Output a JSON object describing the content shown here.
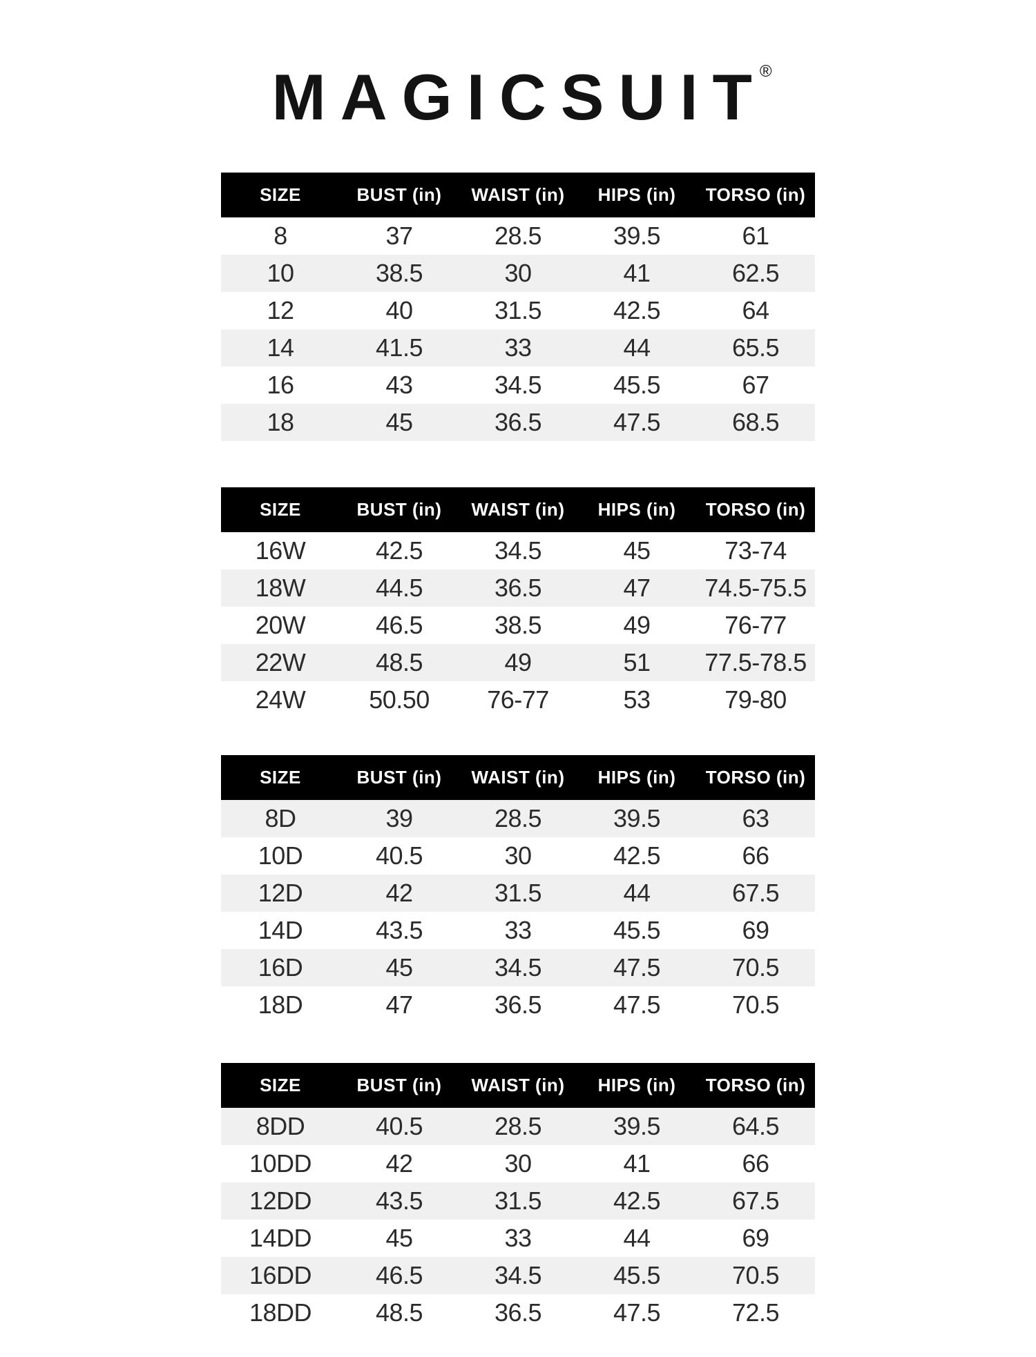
{
  "logo": {
    "text": "MAGICSUIT",
    "trademark": "®"
  },
  "colors": {
    "page_bg": "#ffffff",
    "header_bg": "#000000",
    "header_text": "#ffffff",
    "row_stripe": "#f0f0f0",
    "body_text": "#2b2b2b"
  },
  "tables": [
    {
      "shaded_rows": "even",
      "columns": [
        "SIZE",
        "BUST (in)",
        "WAIST (in)",
        "HIPS (in)",
        "TORSO (in)"
      ],
      "rows": [
        [
          "8",
          "37",
          "28.5",
          "39.5",
          "61"
        ],
        [
          "10",
          "38.5",
          "30",
          "41",
          "62.5"
        ],
        [
          "12",
          "40",
          "31.5",
          "42.5",
          "64"
        ],
        [
          "14",
          "41.5",
          "33",
          "44",
          "65.5"
        ],
        [
          "16",
          "43",
          "34.5",
          "45.5",
          "67"
        ],
        [
          "18",
          "45",
          "36.5",
          "47.5",
          "68.5"
        ]
      ]
    },
    {
      "shaded_rows": "even",
      "columns": [
        "SIZE",
        "BUST (in)",
        "WAIST (in)",
        "HIPS (in)",
        "TORSO (in)"
      ],
      "rows": [
        [
          "16W",
          "42.5",
          "34.5",
          "45",
          "73-74"
        ],
        [
          "18W",
          "44.5",
          "36.5",
          "47",
          "74.5-75.5"
        ],
        [
          "20W",
          "46.5",
          "38.5",
          "49",
          "76-77"
        ],
        [
          "22W",
          "48.5",
          "49",
          "51",
          "77.5-78.5"
        ],
        [
          "24W",
          "50.50",
          "76-77",
          "53",
          "79-80"
        ]
      ]
    },
    {
      "shaded_rows": "odd",
      "columns": [
        "SIZE",
        "BUST (in)",
        "WAIST (in)",
        "HIPS (in)",
        "TORSO (in)"
      ],
      "rows": [
        [
          "8D",
          "39",
          "28.5",
          "39.5",
          "63"
        ],
        [
          "10D",
          "40.5",
          "30",
          "42.5",
          "66"
        ],
        [
          "12D",
          "42",
          "31.5",
          "44",
          "67.5"
        ],
        [
          "14D",
          "43.5",
          "33",
          "45.5",
          "69"
        ],
        [
          "16D",
          "45",
          "34.5",
          "47.5",
          "70.5"
        ],
        [
          "18D",
          "47",
          "36.5",
          "47.5",
          "70.5"
        ]
      ]
    },
    {
      "shaded_rows": "odd",
      "columns": [
        "SIZE",
        "BUST (in)",
        "WAIST (in)",
        "HIPS (in)",
        "TORSO (in)"
      ],
      "rows": [
        [
          "8DD",
          "40.5",
          "28.5",
          "39.5",
          "64.5"
        ],
        [
          "10DD",
          "42",
          "30",
          "41",
          "66"
        ],
        [
          "12DD",
          "43.5",
          "31.5",
          "42.5",
          "67.5"
        ],
        [
          "14DD",
          "45",
          "33",
          "44",
          "69"
        ],
        [
          "16DD",
          "46.5",
          "34.5",
          "45.5",
          "70.5"
        ],
        [
          "18DD",
          "48.5",
          "36.5",
          "47.5",
          "72.5"
        ]
      ]
    }
  ]
}
